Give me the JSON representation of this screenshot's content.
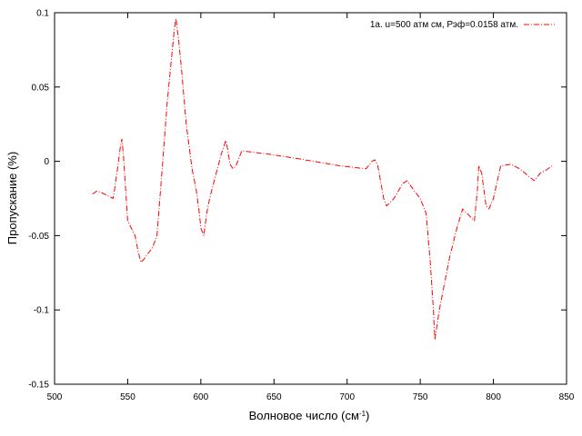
{
  "chart_data": {
    "type": "line",
    "xlabel": "Волновое число (см",
    "xlabel_sup": "-1",
    "xlabel_close": ")",
    "ylabel": "Пропускание (%)",
    "xlim": [
      500,
      850
    ],
    "ylim": [
      -0.15,
      0.1
    ],
    "xticks": [
      500,
      550,
      600,
      650,
      700,
      750,
      800,
      850
    ],
    "yticks": [
      -0.15,
      -0.1,
      -0.05,
      0,
      0.05,
      0.1
    ],
    "xtick_labels": [
      "500",
      "550",
      "600",
      "650",
      "700",
      "750",
      "800",
      "850"
    ],
    "ytick_labels": [
      "-0.15",
      "-0.1",
      "-0.05",
      "0",
      "0.05",
      "0.1"
    ],
    "grid": false,
    "legend_position": "top-right",
    "series": [
      {
        "name": "1а. u=500 атм см, Рэф=0.0158 атм.",
        "color": "#ff0000",
        "line_style": "dash-dot",
        "x": [
          526,
          529,
          532,
          536,
          540,
          541,
          543,
          545,
          546,
          547,
          550,
          555,
          557,
          559,
          561,
          564,
          567,
          570,
          574,
          577,
          580,
          582,
          583,
          585,
          587,
          590,
          594,
          597,
          599,
          600,
          602,
          604,
          606,
          610,
          614,
          617,
          618,
          620,
          622,
          624,
          628,
          645,
          665,
          695,
          713,
          717,
          719,
          721,
          725,
          727,
          732,
          738,
          741,
          746,
          750,
          754,
          757,
          759,
          760,
          763,
          766,
          770,
          775,
          779,
          782,
          785,
          787,
          789,
          790,
          792,
          795,
          797,
          800,
          805,
          812,
          818,
          824,
          828,
          832,
          836,
          840
        ],
        "y": [
          -0.022,
          -0.02,
          -0.021,
          -0.023,
          -0.025,
          -0.019,
          -0.005,
          0.01,
          0.015,
          0.005,
          -0.04,
          -0.05,
          -0.06,
          -0.068,
          -0.066,
          -0.062,
          -0.058,
          -0.05,
          0.0,
          0.04,
          0.07,
          0.09,
          0.096,
          0.08,
          0.06,
          0.025,
          -0.005,
          -0.02,
          -0.035,
          -0.045,
          -0.05,
          -0.035,
          -0.025,
          -0.01,
          0.005,
          0.014,
          0.01,
          -0.002,
          -0.005,
          -0.003,
          0.007,
          0.005,
          0.002,
          -0.003,
          -0.005,
          0.0,
          0.001,
          -0.003,
          -0.025,
          -0.03,
          -0.025,
          -0.015,
          -0.013,
          -0.02,
          -0.025,
          -0.035,
          -0.07,
          -0.1,
          -0.12,
          -0.1,
          -0.085,
          -0.065,
          -0.045,
          -0.032,
          -0.035,
          -0.038,
          -0.04,
          -0.02,
          -0.003,
          -0.008,
          -0.03,
          -0.032,
          -0.025,
          -0.003,
          -0.002,
          -0.005,
          -0.01,
          -0.013,
          -0.008,
          -0.006,
          -0.003
        ]
      }
    ]
  }
}
